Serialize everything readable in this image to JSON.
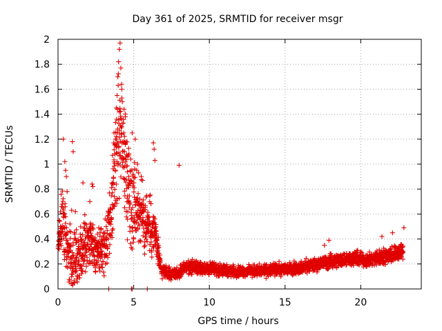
{
  "chart_data": {
    "type": "scatter",
    "title": "Day 361 of 2025, SRMTID for receiver msgr",
    "xlabel": "GPS time / hours",
    "ylabel": "SRMTID / TECUs",
    "xlim": [
      0,
      24
    ],
    "ylim": [
      0,
      2
    ],
    "x_ticks": [
      0,
      5,
      10,
      15,
      20
    ],
    "x_tick_labels": [
      "0",
      "5",
      "10",
      "15",
      "20"
    ],
    "y_ticks": [
      0,
      0.2,
      0.4,
      0.6,
      0.8,
      1,
      1.2,
      1.4,
      1.6,
      1.8,
      2
    ],
    "y_tick_labels": [
      "0",
      "0.2",
      "0.4",
      "0.6",
      "0.8",
      "1",
      "1.2",
      "1.4",
      "1.6",
      "1.8",
      "2"
    ],
    "grid": true,
    "legend": "none",
    "marker": "+",
    "color": "#ff0000",
    "marker_color": "#e00000",
    "series": [
      {
        "name": "SRMTID",
        "profile": [
          {
            "x": 0.0,
            "y": 0.35,
            "spread": 0.1
          },
          {
            "x": 0.3,
            "y": 0.6,
            "spread": 0.45
          },
          {
            "x": 0.6,
            "y": 0.3,
            "spread": 0.3
          },
          {
            "x": 1.0,
            "y": 0.2,
            "spread": 0.35
          },
          {
            "x": 1.5,
            "y": 0.3,
            "spread": 0.3
          },
          {
            "x": 2.0,
            "y": 0.4,
            "spread": 0.3
          },
          {
            "x": 2.5,
            "y": 0.3,
            "spread": 0.25
          },
          {
            "x": 3.0,
            "y": 0.3,
            "spread": 0.3
          },
          {
            "x": 3.5,
            "y": 0.5,
            "spread": 0.35
          },
          {
            "x": 3.8,
            "y": 1.0,
            "spread": 0.6
          },
          {
            "x": 4.1,
            "y": 1.3,
            "spread": 0.7
          },
          {
            "x": 4.5,
            "y": 0.9,
            "spread": 0.6
          },
          {
            "x": 5.0,
            "y": 0.7,
            "spread": 0.5
          },
          {
            "x": 5.5,
            "y": 0.6,
            "spread": 0.4
          },
          {
            "x": 6.0,
            "y": 0.5,
            "spread": 0.35
          },
          {
            "x": 6.4,
            "y": 0.45,
            "spread": 0.25
          },
          {
            "x": 6.8,
            "y": 0.15,
            "spread": 0.08
          },
          {
            "x": 7.5,
            "y": 0.12,
            "spread": 0.06
          },
          {
            "x": 8.0,
            "y": 0.13,
            "spread": 0.06
          },
          {
            "x": 8.5,
            "y": 0.18,
            "spread": 0.08
          },
          {
            "x": 10.0,
            "y": 0.16,
            "spread": 0.07
          },
          {
            "x": 12.0,
            "y": 0.14,
            "spread": 0.06
          },
          {
            "x": 14.0,
            "y": 0.15,
            "spread": 0.07
          },
          {
            "x": 16.0,
            "y": 0.17,
            "spread": 0.07
          },
          {
            "x": 18.0,
            "y": 0.22,
            "spread": 0.08
          },
          {
            "x": 19.5,
            "y": 0.25,
            "spread": 0.08
          },
          {
            "x": 20.5,
            "y": 0.23,
            "spread": 0.08
          },
          {
            "x": 21.5,
            "y": 0.26,
            "spread": 0.09
          },
          {
            "x": 22.8,
            "y": 0.3,
            "spread": 0.1
          }
        ],
        "outliers": [
          [
            0.35,
            1.2
          ],
          [
            0.45,
            1.02
          ],
          [
            0.5,
            0.95
          ],
          [
            0.55,
            0.9
          ],
          [
            0.6,
            0.78
          ],
          [
            0.95,
            1.18
          ],
          [
            1.0,
            1.1
          ],
          [
            0.9,
            0.63
          ],
          [
            1.15,
            0.62
          ],
          [
            1.65,
            0.85
          ],
          [
            2.25,
            0.84
          ],
          [
            2.3,
            0.82
          ],
          [
            2.1,
            0.7
          ],
          [
            3.6,
            1.07
          ],
          [
            3.7,
            1.25
          ],
          [
            3.75,
            1.16
          ],
          [
            3.8,
            1.2
          ],
          [
            3.85,
            1.45
          ],
          [
            3.9,
            1.55
          ],
          [
            3.95,
            1.7
          ],
          [
            4.0,
            1.82
          ],
          [
            4.05,
            1.92
          ],
          [
            4.1,
            1.97
          ],
          [
            4.15,
            1.77
          ],
          [
            4.2,
            1.64
          ],
          [
            4.25,
            1.5
          ],
          [
            4.3,
            1.33
          ],
          [
            4.35,
            1.25
          ],
          [
            4.4,
            1.1
          ],
          [
            4.45,
            1.38
          ],
          [
            4.5,
            1.18
          ],
          [
            4.6,
            1.06
          ],
          [
            4.9,
            1.25
          ],
          [
            5.1,
            1.2
          ],
          [
            5.25,
            1.0
          ],
          [
            5.5,
            0.9
          ],
          [
            6.3,
            1.17
          ],
          [
            6.35,
            1.12
          ],
          [
            6.4,
            1.03
          ],
          [
            8.0,
            0.99
          ],
          [
            3.35,
            0.0
          ],
          [
            4.85,
            0.0
          ],
          [
            4.9,
            0.0
          ],
          [
            5.9,
            0.0
          ],
          [
            17.9,
            0.39
          ],
          [
            17.6,
            0.35
          ],
          [
            22.85,
            0.49
          ],
          [
            22.1,
            0.45
          ],
          [
            21.4,
            0.42
          ]
        ],
        "points_per_hour": 120,
        "seed": 361
      }
    ]
  }
}
